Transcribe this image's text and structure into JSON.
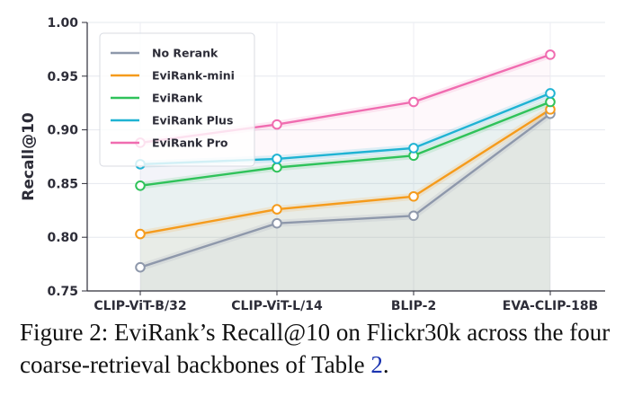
{
  "chart_data": {
    "type": "line",
    "title": "",
    "xlabel": "",
    "ylabel": "Recall@10",
    "ylim": [
      0.75,
      1.0
    ],
    "yticks": [
      "0.75",
      "0.80",
      "0.85",
      "0.90",
      "0.95",
      "1.00"
    ],
    "categories": [
      "CLIP-ViT-B/32",
      "CLIP-ViT-L/14",
      "BLIP-2",
      "EVA-CLIP-18B"
    ],
    "grid": true,
    "legend_position": "top-left",
    "series": [
      {
        "name": "No Rerank",
        "color": "#8e98ab",
        "values": [
          0.772,
          0.813,
          0.82,
          0.915
        ]
      },
      {
        "name": "EviRank-mini",
        "color": "#f59b1c",
        "values": [
          0.803,
          0.826,
          0.838,
          0.919
        ]
      },
      {
        "name": "EviRank",
        "color": "#2fc25a",
        "values": [
          0.848,
          0.865,
          0.876,
          0.926
        ]
      },
      {
        "name": "EviRank Plus",
        "color": "#1fb3d3",
        "values": [
          0.868,
          0.873,
          0.883,
          0.934
        ]
      },
      {
        "name": "EviRank Pro",
        "color": "#f06cb0",
        "values": [
          0.888,
          0.905,
          0.926,
          0.97
        ]
      }
    ]
  },
  "caption": {
    "prefix": "Figure 2: EviRank’s Recall@10 on Flickr30k across the four coarse-retrieval backbones of Table ",
    "table_ref": "2",
    "suffix": "."
  }
}
